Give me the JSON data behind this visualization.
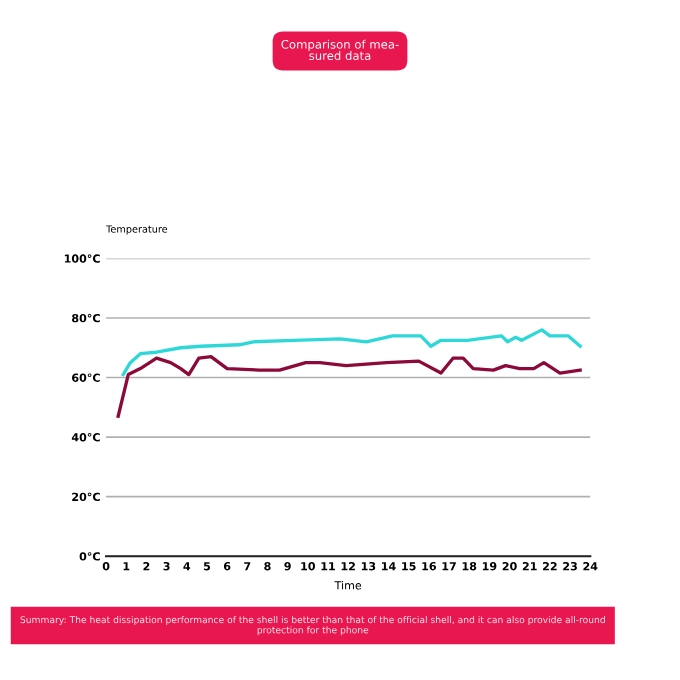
{
  "chart_data": {
    "type": "line",
    "title": "Comparison of mea-\nsured data",
    "xlabel": "Time",
    "ylabel": "Temperature",
    "annotations": [
      "Summary: The heat dissipation performance of the shell is better than that of the official shell, and it can also provide all-round protection for the phone"
    ],
    "series": [
      {
        "color": "#8b0a3a",
        "x": [
          0.6,
          1.1,
          1.7,
          2.5,
          3.2,
          3.7,
          4.1,
          4.6,
          5.2,
          6.0,
          7.6,
          8.6,
          9.9,
          10.6,
          11.9,
          13.9,
          15.5,
          16.6,
          17.2,
          17.7,
          18.2,
          19.2,
          19.8,
          20.5,
          21.2,
          21.7,
          22.5,
          23.5
        ],
        "values": [
          47,
          61,
          63,
          66.5,
          65,
          63,
          61,
          66.5,
          67,
          63,
          62.5,
          62.5,
          65,
          65,
          64,
          65,
          65.5,
          61.5,
          66.5,
          66.5,
          63,
          62.5,
          64,
          63,
          63,
          65,
          61.5,
          62.5
        ]
      },
      {
        "color": "#2ed8d8",
        "x": [
          0.85,
          1.2,
          1.7,
          2.5,
          3.7,
          4.7,
          6.6,
          7.3,
          9.3,
          11.6,
          12.9,
          14.2,
          15.6,
          16.1,
          16.6,
          17.9,
          19.6,
          19.9,
          20.3,
          20.6,
          21.6,
          22.0,
          22.9,
          23.5
        ],
        "values": [
          61,
          65,
          68,
          68.5,
          70,
          70.5,
          71,
          72,
          72.5,
          73,
          72,
          74,
          74,
          70.5,
          72.5,
          72.5,
          74,
          72,
          73.5,
          72.5,
          76,
          74,
          74,
          70.5
        ]
      }
    ],
    "xlim": [
      0,
      24
    ],
    "xticks": [
      0,
      1,
      2,
      3,
      4,
      5,
      6,
      7,
      8,
      9,
      10,
      11,
      12,
      13,
      14,
      15,
      16,
      17,
      18,
      19,
      20,
      21,
      22,
      23,
      24
    ],
    "ylim": [
      0,
      100
    ],
    "yticks": [
      {
        "value": 0,
        "label": "0°C"
      },
      {
        "value": 20,
        "label": "20°C"
      },
      {
        "value": 40,
        "label": "40°C"
      },
      {
        "value": 60,
        "label": "60°C"
      },
      {
        "value": 80,
        "label": "80°C"
      },
      {
        "value": 100,
        "label": "100°C"
      }
    ],
    "grid": "y",
    "marker": "none",
    "line_style": "solid"
  }
}
